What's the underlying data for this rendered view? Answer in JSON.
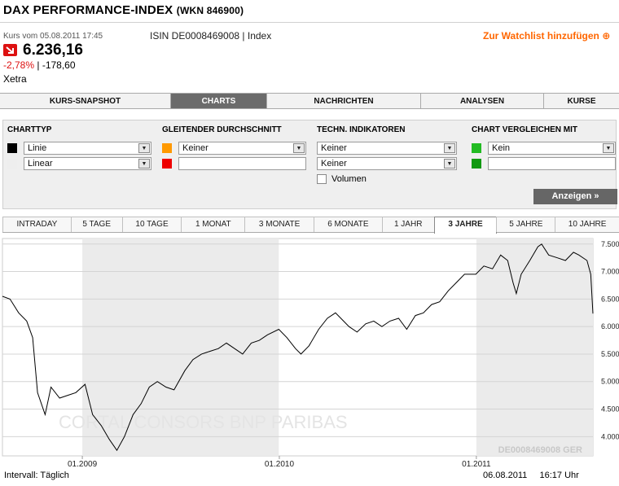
{
  "header": {
    "title": "DAX PERFORMANCE-INDEX",
    "wkn": "(WKN 846900)",
    "quote_time": "Kurs vom 05.08.2011 17:45",
    "isin": "ISIN DE0008469008 | Index",
    "watchlist_link": "Zur Watchlist hinzufügen",
    "price": "6.236,16",
    "change_pct": "-2,78%",
    "change_sep": " | ",
    "change_abs": "-178,60",
    "exchange": "Xetra"
  },
  "tabs": [
    "KURS-SNAPSHOT",
    "CHARTS",
    "NACHRICHTEN",
    "ANALYSEN",
    "KURSE"
  ],
  "active_tab": "CHARTS",
  "settings": {
    "charttyp": {
      "label": "CHARTTYP",
      "value1": "Linie",
      "value2": "Linear",
      "color1": "#000000",
      "color2": "#eeeeee"
    },
    "gleitender": {
      "label": "GLEITENDER DURCHSCHNITT",
      "value1": "Keiner",
      "value2": "",
      "color1": "#ff9900",
      "color2": "#ee0000"
    },
    "techn": {
      "label": "TECHN. INDIKATOREN",
      "value1": "Keiner",
      "value2": "Keiner",
      "volume_label": "Volumen"
    },
    "vergleich": {
      "label": "CHART VERGLEICHEN MIT",
      "value1": "Kein",
      "value2": "",
      "color1": "#22bb22",
      "color2": "#119911"
    },
    "button": "Anzeigen »"
  },
  "periods": [
    "INTRADAY",
    "5 TAGE",
    "10 TAGE",
    "1 MONAT",
    "3 MONATE",
    "6 MONATE",
    "1 JAHR",
    "3 JAHRE",
    "5 JAHRE",
    "10 JAHRE"
  ],
  "active_period": "3 JAHRE",
  "chart_data": {
    "type": "line",
    "x_tick_labels": [
      "01.2009",
      "01.2010",
      "01.2011"
    ],
    "y_tick_labels": [
      "4.000",
      "4.500",
      "5.000",
      "5.500",
      "6.000",
      "6.500",
      "7.000",
      "7.500"
    ],
    "ylim": [
      3650,
      7600
    ],
    "xlim": [
      "2008-08-06",
      "2011-08-05"
    ],
    "grid": true,
    "shaded_years": [
      "2009",
      "2011"
    ],
    "watermark": "CORTAL CONSORS BNP PARIBAS",
    "id_label": "DE0008469008 GER",
    "series": [
      {
        "x": [
          "2008-08-06",
          "2008-08-20",
          "2008-09-05",
          "2008-09-20",
          "2008-10-01",
          "2008-10-10",
          "2008-10-24",
          "2008-11-04",
          "2008-11-20",
          "2008-12-05",
          "2008-12-20",
          "2009-01-06",
          "2009-01-20",
          "2009-02-05",
          "2009-02-20",
          "2009-03-06",
          "2009-03-20",
          "2009-04-05",
          "2009-04-20",
          "2009-05-05",
          "2009-05-20",
          "2009-06-05",
          "2009-06-20",
          "2009-07-10",
          "2009-07-25",
          "2009-08-10",
          "2009-08-25",
          "2009-09-10",
          "2009-09-25",
          "2009-10-10",
          "2009-10-25",
          "2009-11-10",
          "2009-11-25",
          "2009-12-10",
          "2009-12-31",
          "2010-01-15",
          "2010-01-31",
          "2010-02-10",
          "2010-02-25",
          "2010-03-15",
          "2010-03-31",
          "2010-04-15",
          "2010-04-30",
          "2010-05-10",
          "2010-05-25",
          "2010-06-10",
          "2010-06-25",
          "2010-07-10",
          "2010-07-25",
          "2010-08-10",
          "2010-08-25",
          "2010-09-10",
          "2010-09-25",
          "2010-10-10",
          "2010-10-25",
          "2010-11-10",
          "2010-11-25",
          "2010-12-10",
          "2010-12-31",
          "2011-01-15",
          "2011-01-31",
          "2011-02-15",
          "2011-02-28",
          "2011-03-10",
          "2011-03-16",
          "2011-03-25",
          "2011-04-10",
          "2011-04-25",
          "2011-05-02",
          "2011-05-15",
          "2011-05-31",
          "2011-06-15",
          "2011-06-30",
          "2011-07-10",
          "2011-07-25",
          "2011-08-01",
          "2011-08-05"
        ],
        "values": [
          6550,
          6500,
          6250,
          6100,
          5800,
          4800,
          4400,
          4900,
          4700,
          4750,
          4800,
          4950,
          4400,
          4200,
          3950,
          3750,
          4000,
          4400,
          4600,
          4900,
          5000,
          4900,
          4850,
          5200,
          5400,
          5500,
          5550,
          5600,
          5700,
          5600,
          5500,
          5700,
          5750,
          5850,
          5950,
          5800,
          5600,
          5500,
          5650,
          5950,
          6150,
          6250,
          6100,
          6000,
          5900,
          6050,
          6100,
          6000,
          6100,
          6150,
          5950,
          6200,
          6250,
          6400,
          6450,
          6650,
          6800,
          6950,
          6950,
          7100,
          7050,
          7300,
          7200,
          6800,
          6600,
          6950,
          7200,
          7450,
          7500,
          7300,
          7250,
          7200,
          7350,
          7300,
          7200,
          6950,
          6236
        ]
      }
    ]
  },
  "footer": {
    "interval": "Intervall: Täglich",
    "timestamp": "06.08.2011     16:17 Uhr"
  }
}
